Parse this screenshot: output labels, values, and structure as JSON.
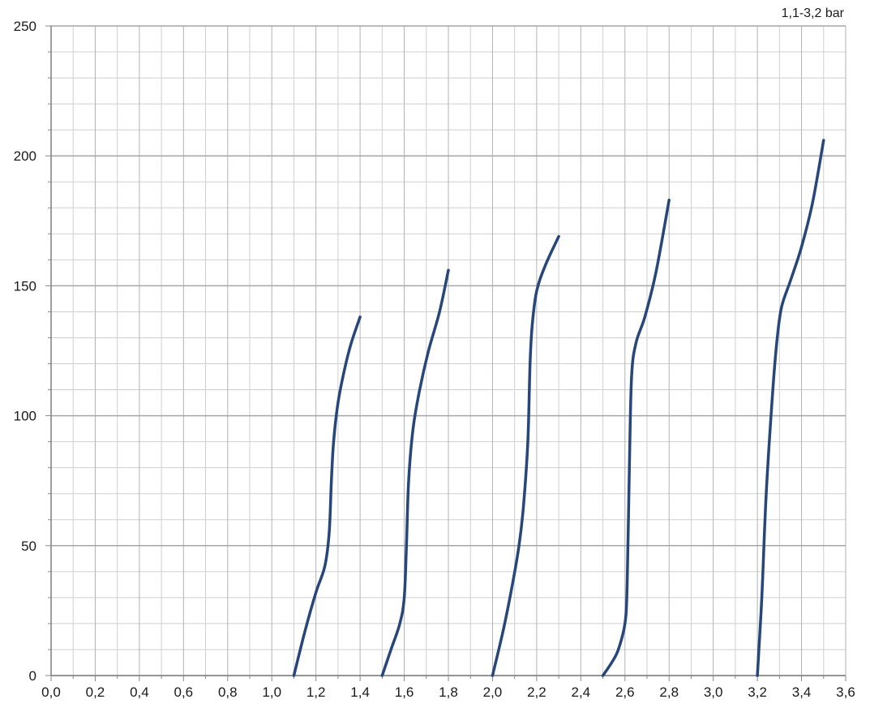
{
  "chart_data": {
    "type": "line",
    "title": "",
    "annotation": "1,1-3,2 bar",
    "xlabel": "",
    "ylabel": "",
    "xlim": [
      0.0,
      3.6
    ],
    "ylim": [
      0,
      250
    ],
    "x_ticks": [
      "0,0",
      "0,2",
      "0,4",
      "0,6",
      "0,8",
      "1,0",
      "1,2",
      "1,4",
      "1,6",
      "1,8",
      "2,0",
      "2,2",
      "2,4",
      "2,6",
      "2,8",
      "3,0",
      "3,2",
      "3,4",
      "3,6"
    ],
    "y_ticks": [
      "0",
      "50",
      "100",
      "150",
      "200",
      "250"
    ],
    "grid": true,
    "line_color": "#27467a",
    "series": [
      {
        "points": [
          [
            1.1,
            0
          ],
          [
            1.15,
            17
          ],
          [
            1.2,
            32
          ],
          [
            1.24,
            42
          ],
          [
            1.26,
            55
          ],
          [
            1.27,
            75
          ],
          [
            1.28,
            90
          ],
          [
            1.3,
            105
          ],
          [
            1.33,
            118
          ],
          [
            1.36,
            128
          ],
          [
            1.4,
            138
          ]
        ]
      },
      {
        "points": [
          [
            1.5,
            0
          ],
          [
            1.54,
            10
          ],
          [
            1.58,
            20
          ],
          [
            1.6,
            30
          ],
          [
            1.61,
            50
          ],
          [
            1.62,
            75
          ],
          [
            1.64,
            95
          ],
          [
            1.67,
            110
          ],
          [
            1.71,
            125
          ],
          [
            1.76,
            140
          ],
          [
            1.8,
            156
          ]
        ]
      },
      {
        "points": [
          [
            2.0,
            0
          ],
          [
            2.05,
            18
          ],
          [
            2.09,
            35
          ],
          [
            2.12,
            50
          ],
          [
            2.14,
            65
          ],
          [
            2.16,
            90
          ],
          [
            2.17,
            120
          ],
          [
            2.18,
            135
          ],
          [
            2.2,
            148
          ],
          [
            2.24,
            158
          ],
          [
            2.3,
            169
          ]
        ]
      },
      {
        "points": [
          [
            2.5,
            0
          ],
          [
            2.54,
            5
          ],
          [
            2.57,
            10
          ],
          [
            2.6,
            20
          ],
          [
            2.61,
            35
          ],
          [
            2.62,
            80
          ],
          [
            2.63,
            115
          ],
          [
            2.65,
            128
          ],
          [
            2.69,
            138
          ],
          [
            2.74,
            155
          ],
          [
            2.8,
            183
          ]
        ]
      },
      {
        "points": [
          [
            3.2,
            0
          ],
          [
            3.22,
            30
          ],
          [
            3.24,
            70
          ],
          [
            3.27,
            110
          ],
          [
            3.29,
            130
          ],
          [
            3.31,
            142
          ],
          [
            3.35,
            152
          ],
          [
            3.4,
            165
          ],
          [
            3.45,
            182
          ],
          [
            3.5,
            206
          ]
        ]
      }
    ]
  }
}
